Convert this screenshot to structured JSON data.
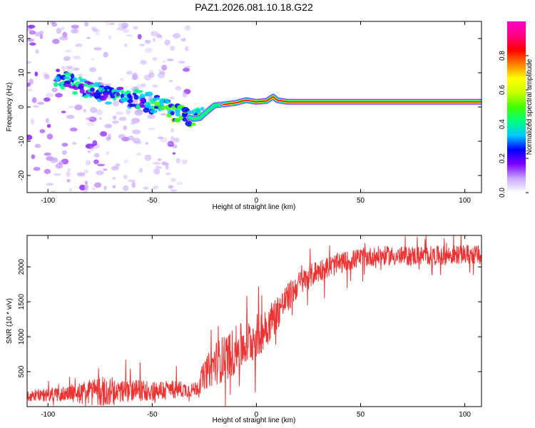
{
  "title": "PAZ1.2026.081.10.18.G22",
  "chart_data": [
    {
      "type": "heatmap",
      "name": "spectrogram",
      "xlabel": "Height of straight line (km)",
      "ylabel": "Frequency (Hz)",
      "xlim": [
        -110,
        108
      ],
      "ylim": [
        -25,
        25
      ],
      "xticks": [
        -100,
        -50,
        0,
        50,
        100
      ],
      "xtick_labels": [
        "-100",
        "-50",
        "0",
        "50",
        "100"
      ],
      "yticks": [
        20,
        10,
        0,
        -10,
        -20
      ],
      "ytick_labels": [
        "20",
        "10",
        "0",
        "-10",
        "-20"
      ],
      "ridge": {
        "description": "dominant frequency track vs height",
        "x": [
          -95,
          -90,
          -85,
          -80,
          -75,
          -70,
          -65,
          -60,
          -55,
          -50,
          -45,
          -40,
          -35,
          -30,
          -27,
          -25,
          -20,
          -15,
          -10,
          -5,
          0,
          5,
          8,
          10,
          15,
          20,
          50,
          95,
          108
        ],
        "y": [
          8.5,
          7.5,
          6.0,
          5.0,
          4.0,
          3.5,
          3.0,
          2.5,
          2.0,
          1.0,
          0.0,
          -1.5,
          -2.5,
          -3.5,
          -3.2,
          -2.0,
          0.5,
          0.8,
          1.2,
          2.0,
          1.5,
          1.8,
          3.0,
          2.0,
          1.5,
          1.5,
          1.5,
          1.5,
          1.5
        ]
      },
      "colorbar": {
        "label": "Normalized spectral amplitude",
        "range": [
          0,
          1
        ],
        "ticks": [
          0.0,
          0.2,
          0.4,
          0.6,
          0.8
        ],
        "tick_labels": [
          "0.0",
          "0.2",
          "0.4",
          "0.6",
          "0.8"
        ],
        "colors": [
          "#ffffff",
          "#c8a8ff",
          "#7a00ff",
          "#0000ff",
          "#00c8ff",
          "#00ff80",
          "#40ff00",
          "#c8ff00",
          "#ffff00",
          "#ff8000",
          "#ff0000",
          "#ff0080",
          "#ff00c8"
        ]
      }
    },
    {
      "type": "line",
      "name": "snr",
      "xlabel": "Height of straight line (km)",
      "ylabel": "SNR (10 * v/v)",
      "xlim": [
        -110,
        108
      ],
      "ylim": [
        0,
        2450
      ],
      "xticks": [
        -100,
        -50,
        0,
        50,
        100
      ],
      "xtick_labels": [
        "-100",
        "-50",
        "0",
        "50",
        "100"
      ],
      "yticks": [
        2000,
        1500,
        1000,
        500
      ],
      "ytick_labels": [
        "2000",
        "1500",
        "1000",
        "500"
      ],
      "line_color": "#ee3333",
      "trend": {
        "x": [
          -110,
          -100,
          -90,
          -80,
          -70,
          -60,
          -50,
          -40,
          -30,
          -28,
          -25,
          -20,
          -15,
          -10,
          -5,
          0,
          5,
          10,
          15,
          20,
          30,
          40,
          50,
          60,
          70,
          80,
          90,
          100,
          108
        ],
        "y": [
          150,
          170,
          190,
          200,
          230,
          230,
          230,
          250,
          240,
          300,
          450,
          620,
          700,
          800,
          900,
          1000,
          1150,
          1350,
          1550,
          1750,
          1950,
          2050,
          2130,
          2160,
          2150,
          2160,
          2160,
          2180,
          2170
        ]
      },
      "noise_amplitude": {
        "x": [
          -110,
          -90,
          -75,
          -60,
          -40,
          -30,
          -20,
          -10,
          0,
          20,
          50,
          108
        ],
        "y": [
          80,
          120,
          220,
          160,
          140,
          100,
          320,
          350,
          330,
          180,
          140,
          140
        ]
      }
    }
  ]
}
